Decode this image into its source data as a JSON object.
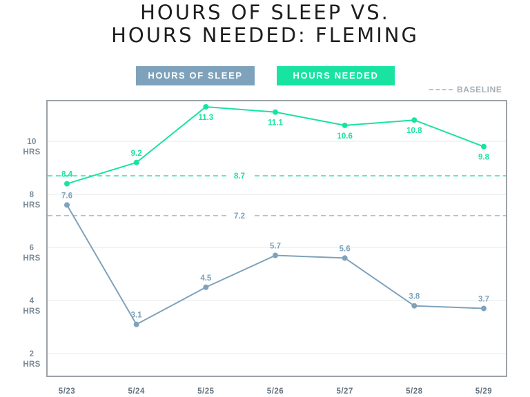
{
  "title_line1": "HOURS OF SLEEP VS.",
  "title_line2": "HOURS NEEDED: FLEMING",
  "legend": {
    "sleep": "HOURS OF SLEEP",
    "needed": "HOURS NEEDED",
    "baseline": "BASELINE"
  },
  "colors": {
    "sleep": "#7ea2bb",
    "needed": "#19e3a1",
    "grid": "#e6e8ea",
    "frame": "#9ca2a7"
  },
  "chart_data": {
    "type": "line",
    "title": "HOURS OF SLEEP VS. HOURS NEEDED: FLEMING",
    "categories": [
      "5/23",
      "5/24",
      "5/25",
      "5/26",
      "5/27",
      "5/28",
      "5/29"
    ],
    "series": [
      {
        "name": "HOURS OF SLEEP",
        "color": "#7ea2bb",
        "values": [
          7.6,
          3.1,
          4.5,
          5.7,
          5.6,
          3.8,
          3.7
        ],
        "baseline": 7.2
      },
      {
        "name": "HOURS NEEDED",
        "color": "#19e3a1",
        "values": [
          8.4,
          9.2,
          11.3,
          11.1,
          10.6,
          10.8,
          9.8
        ],
        "baseline": 8.7
      }
    ],
    "baseline_values": [
      7.2,
      8.7
    ],
    "baseline_labels": [
      "7.2",
      "8.7"
    ],
    "yticks": [
      {
        "value": 2,
        "number": "2",
        "unit": "HRS"
      },
      {
        "value": 4,
        "number": "4",
        "unit": "HRS"
      },
      {
        "value": 6,
        "number": "6",
        "unit": "HRS"
      },
      {
        "value": 8,
        "number": "8",
        "unit": "HRS"
      },
      {
        "value": 10,
        "number": "10",
        "unit": "HRS"
      }
    ],
    "ylim": [
      1.2,
      11.5
    ],
    "grid": true,
    "legend_position": "top"
  }
}
